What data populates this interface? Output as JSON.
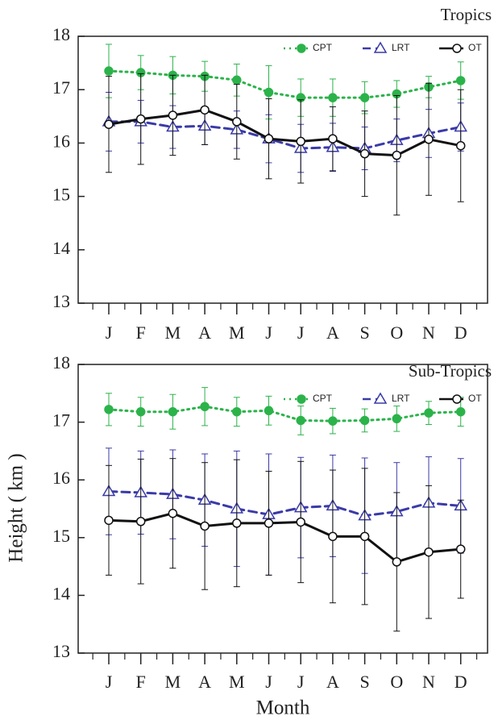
{
  "chart_data": [
    {
      "type": "line",
      "title": "Tropics",
      "categories": [
        "J",
        "F",
        "M",
        "A",
        "M",
        "J",
        "J",
        "A",
        "S",
        "O",
        "N",
        "D"
      ],
      "ylim": [
        13,
        18
      ],
      "yticks": [
        13,
        14,
        15,
        16,
        17,
        18
      ],
      "series": [
        {
          "name": "CPT",
          "color": "#2bb34a",
          "marker": "filled-circle",
          "linestyle": "dotted",
          "values": [
            17.35,
            17.32,
            17.27,
            17.25,
            17.18,
            16.95,
            16.85,
            16.85,
            16.85,
            16.92,
            17.05,
            17.17
          ],
          "errors": [
            0.5,
            0.32,
            0.35,
            0.28,
            0.3,
            0.5,
            0.35,
            0.35,
            0.3,
            0.25,
            0.2,
            0.35
          ]
        },
        {
          "name": "LRT",
          "color": "#3a3aa8",
          "marker": "open-triangle",
          "linestyle": "dashed",
          "values": [
            16.4,
            16.4,
            16.3,
            16.32,
            16.25,
            16.08,
            15.9,
            15.92,
            15.9,
            16.05,
            16.18,
            16.3
          ],
          "errors": [
            0.55,
            0.4,
            0.4,
            0.35,
            0.35,
            0.45,
            0.45,
            0.45,
            0.4,
            0.4,
            0.45,
            0.45
          ]
        },
        {
          "name": "OT",
          "color": "#111111",
          "marker": "open-circle",
          "linestyle": "solid",
          "values": [
            16.35,
            16.45,
            16.52,
            16.62,
            16.4,
            16.08,
            16.03,
            16.08,
            15.8,
            15.77,
            16.07,
            15.95
          ],
          "errors": [
            0.9,
            0.85,
            0.75,
            0.65,
            0.7,
            0.75,
            0.78,
            0.6,
            0.8,
            1.12,
            1.05,
            1.05
          ]
        }
      ]
    },
    {
      "type": "line",
      "title": "Sub-Tropics",
      "x_label": "Month",
      "y_label": "Height ( km )",
      "categories": [
        "J",
        "F",
        "M",
        "A",
        "M",
        "J",
        "J",
        "A",
        "S",
        "O",
        "N",
        "D"
      ],
      "ylim": [
        13,
        18
      ],
      "yticks": [
        13,
        14,
        15,
        16,
        17,
        18
      ],
      "series": [
        {
          "name": "CPT",
          "color": "#2bb34a",
          "marker": "filled-circle",
          "linestyle": "dotted",
          "values": [
            17.22,
            17.18,
            17.18,
            17.27,
            17.18,
            17.2,
            17.03,
            17.02,
            17.03,
            17.06,
            17.16,
            17.18
          ],
          "errors": [
            0.28,
            0.25,
            0.3,
            0.33,
            0.25,
            0.25,
            0.25,
            0.22,
            0.2,
            0.22,
            0.2,
            0.25
          ]
        },
        {
          "name": "LRT",
          "color": "#3a3aa8",
          "marker": "open-triangle",
          "linestyle": "dashed",
          "values": [
            15.8,
            15.78,
            15.75,
            15.65,
            15.5,
            15.4,
            15.52,
            15.55,
            15.38,
            15.45,
            15.6,
            15.55
          ],
          "errors": [
            0.75,
            0.72,
            0.77,
            0.8,
            1.0,
            1.05,
            0.87,
            0.88,
            1.0,
            0.85,
            0.8,
            0.82
          ]
        },
        {
          "name": "OT",
          "color": "#111111",
          "marker": "open-circle",
          "linestyle": "solid",
          "values": [
            15.3,
            15.28,
            15.42,
            15.2,
            15.25,
            15.25,
            15.27,
            15.02,
            15.02,
            14.58,
            14.75,
            14.8
          ],
          "errors": [
            0.95,
            1.08,
            0.95,
            1.1,
            1.1,
            0.9,
            1.05,
            1.15,
            1.18,
            1.2,
            1.15,
            0.85
          ]
        }
      ]
    }
  ]
}
